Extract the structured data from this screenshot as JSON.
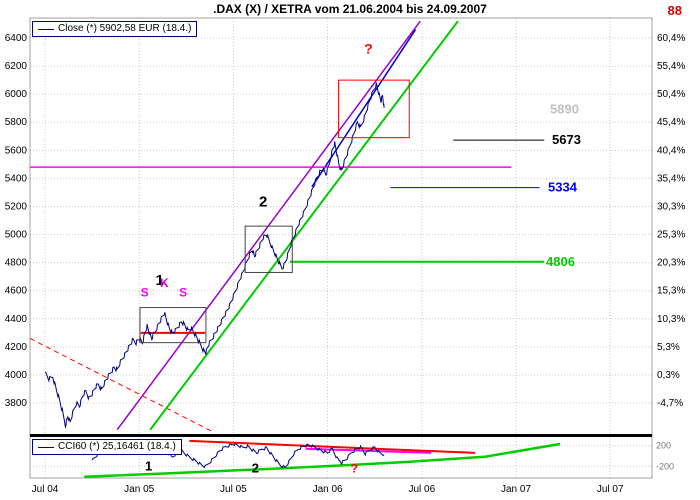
{
  "header": {
    "title": ".DAX (X) / XETRA vom 21.06.2004 bis 24.09.2007",
    "logo": "88"
  },
  "legends": {
    "price": "Close (*) 5902,58 EUR (18.4.)",
    "cci": "CCI60 (*) 25,16461 (18.4.)"
  },
  "chart_data": {
    "type": "line",
    "title": ".DAX (X) / XETRA vom 21.06.2004 bis 24.09.2007",
    "x_axis": {
      "labels": [
        "Jul 04",
        "Jan 05",
        "Jul 05",
        "Jan 06",
        "Jul 06",
        "Jan 07",
        "Jul 07"
      ],
      "t": [
        0,
        6,
        12,
        18,
        24,
        30,
        36
      ]
    },
    "price_axis": {
      "ticks": [
        6400,
        6200,
        6000,
        5800,
        5600,
        5400,
        5200,
        5000,
        4800,
        4600,
        4400,
        4200,
        4000,
        3800
      ],
      "pct_labels": [
        "60,4%",
        "55,4%",
        "50,4%",
        "45,4%",
        "40,4%",
        "35,4%",
        "30,3%",
        "25,3%",
        "20,3%",
        "15,3%",
        "10,3%",
        "5,3%",
        "0,3%",
        "-4,7%"
      ]
    },
    "cci_axis": {
      "ticks": [
        200,
        -200
      ]
    },
    "series": {
      "close": {
        "name": "Close",
        "color": "#00007f",
        "points": [
          [
            0,
            4020
          ],
          [
            0.25,
            3970
          ],
          [
            0.5,
            3985
          ],
          [
            0.7,
            3905
          ],
          [
            0.9,
            3830
          ],
          [
            1.1,
            3745
          ],
          [
            1.3,
            3640
          ],
          [
            1.45,
            3705
          ],
          [
            1.6,
            3665
          ],
          [
            1.8,
            3740
          ],
          [
            2,
            3800
          ],
          [
            2.2,
            3780
          ],
          [
            2.4,
            3850
          ],
          [
            2.6,
            3885
          ],
          [
            2.8,
            3835
          ],
          [
            3,
            3865
          ],
          [
            3.2,
            3910
          ],
          [
            3.4,
            3935
          ],
          [
            3.6,
            3895
          ],
          [
            3.8,
            3945
          ],
          [
            4,
            3985
          ],
          [
            4.2,
            4020
          ],
          [
            4.4,
            4055
          ],
          [
            4.6,
            4035
          ],
          [
            4.8,
            4090
          ],
          [
            5,
            4130
          ],
          [
            5.2,
            4170
          ],
          [
            5.4,
            4210
          ],
          [
            5.6,
            4250
          ],
          [
            5.8,
            4230
          ],
          [
            6,
            4260
          ],
          [
            6.2,
            4225
          ],
          [
            6.35,
            4290
          ],
          [
            6.5,
            4350
          ],
          [
            6.65,
            4300
          ],
          [
            6.8,
            4260
          ],
          [
            7,
            4305
          ],
          [
            7.2,
            4355
          ],
          [
            7.4,
            4400
          ],
          [
            7.6,
            4440
          ],
          [
            7.75,
            4390
          ],
          [
            7.9,
            4340
          ],
          [
            8.1,
            4295
          ],
          [
            8.3,
            4315
          ],
          [
            8.5,
            4350
          ],
          [
            8.7,
            4380
          ],
          [
            8.9,
            4355
          ],
          [
            9.1,
            4315
          ],
          [
            9.3,
            4335
          ],
          [
            9.5,
            4300
          ],
          [
            9.7,
            4260
          ],
          [
            9.9,
            4215
          ],
          [
            10.1,
            4175
          ],
          [
            10.25,
            4160
          ],
          [
            10.4,
            4210
          ],
          [
            10.6,
            4250
          ],
          [
            10.8,
            4290
          ],
          [
            11,
            4330
          ],
          [
            11.2,
            4370
          ],
          [
            11.4,
            4420
          ],
          [
            11.6,
            4460
          ],
          [
            11.8,
            4505
          ],
          [
            12,
            4560
          ],
          [
            12.2,
            4620
          ],
          [
            12.4,
            4680
          ],
          [
            12.6,
            4730
          ],
          [
            12.8,
            4790
          ],
          [
            13,
            4850
          ],
          [
            13.2,
            4890
          ],
          [
            13.35,
            4845
          ],
          [
            13.5,
            4880
          ],
          [
            13.7,
            4930
          ],
          [
            13.9,
            4980
          ],
          [
            14.1,
            5000
          ],
          [
            14.3,
            4950
          ],
          [
            14.5,
            4900
          ],
          [
            14.7,
            4850
          ],
          [
            14.9,
            4800
          ],
          [
            15.1,
            4760
          ],
          [
            15.3,
            4800
          ],
          [
            15.5,
            4870
          ],
          [
            15.7,
            4940
          ],
          [
            15.9,
            5000
          ],
          [
            16.1,
            5060
          ],
          [
            16.3,
            5110
          ],
          [
            16.5,
            5160
          ],
          [
            16.7,
            5220
          ],
          [
            16.9,
            5280
          ],
          [
            17.1,
            5340
          ],
          [
            17.3,
            5400
          ],
          [
            17.5,
            5445
          ],
          [
            17.7,
            5465
          ],
          [
            17.9,
            5430
          ],
          [
            18.1,
            5500
          ],
          [
            18.3,
            5600
          ],
          [
            18.45,
            5650
          ],
          [
            18.6,
            5570
          ],
          [
            18.75,
            5485
          ],
          [
            18.9,
            5460
          ],
          [
            19.1,
            5530
          ],
          [
            19.3,
            5590
          ],
          [
            19.5,
            5660
          ],
          [
            19.7,
            5730
          ],
          [
            19.9,
            5800
          ],
          [
            20.1,
            5760
          ],
          [
            20.3,
            5820
          ],
          [
            20.5,
            5890
          ],
          [
            20.7,
            5960
          ],
          [
            20.9,
            6020
          ],
          [
            21.1,
            6070
          ],
          [
            21.25,
            6010
          ],
          [
            21.4,
            5950
          ],
          [
            21.5,
            5990
          ],
          [
            21.6,
            5902
          ]
        ]
      },
      "cci60": {
        "name": "CCI60",
        "color": "#00007f",
        "points": [
          [
            3,
            -80
          ],
          [
            3.3,
            10
          ],
          [
            3.6,
            70
          ],
          [
            3.9,
            110
          ],
          [
            4.2,
            60
          ],
          [
            4.5,
            100
          ],
          [
            4.8,
            150
          ],
          [
            5.1,
            180
          ],
          [
            5.4,
            120
          ],
          [
            5.7,
            160
          ],
          [
            6,
            90
          ],
          [
            6.3,
            140
          ],
          [
            6.6,
            170
          ],
          [
            6.9,
            80
          ],
          [
            7.2,
            130
          ],
          [
            7.5,
            150
          ],
          [
            7.8,
            60
          ],
          [
            8.1,
            -20
          ],
          [
            8.4,
            60
          ],
          [
            8.7,
            100
          ],
          [
            9,
            20
          ],
          [
            9.3,
            -40
          ],
          [
            9.6,
            -90
          ],
          [
            9.9,
            -160
          ],
          [
            10.2,
            -210
          ],
          [
            10.5,
            -120
          ],
          [
            10.8,
            -20
          ],
          [
            11.1,
            90
          ],
          [
            11.4,
            160
          ],
          [
            11.7,
            200
          ],
          [
            12,
            230
          ],
          [
            12.3,
            200
          ],
          [
            12.6,
            160
          ],
          [
            12.9,
            190
          ],
          [
            13.2,
            120
          ],
          [
            13.5,
            60
          ],
          [
            13.8,
            130
          ],
          [
            14.1,
            160
          ],
          [
            14.4,
            40
          ],
          [
            14.7,
            -80
          ],
          [
            15,
            -180
          ],
          [
            15.3,
            -220
          ],
          [
            15.6,
            -80
          ],
          [
            15.9,
            60
          ],
          [
            16.2,
            150
          ],
          [
            16.5,
            190
          ],
          [
            16.8,
            210
          ],
          [
            17.1,
            180
          ],
          [
            17.4,
            140
          ],
          [
            17.7,
            90
          ],
          [
            18,
            60
          ],
          [
            18.3,
            140
          ],
          [
            18.6,
            -40
          ],
          [
            18.9,
            -130
          ],
          [
            19.2,
            -60
          ],
          [
            19.5,
            60
          ],
          [
            19.8,
            130
          ],
          [
            20.1,
            170
          ],
          [
            20.4,
            40
          ],
          [
            20.7,
            120
          ],
          [
            21,
            170
          ],
          [
            21.3,
            60
          ],
          [
            21.6,
            25
          ]
        ]
      }
    },
    "overlays": {
      "trendlines": [
        {
          "name": "downtrend-red-dashed",
          "color": "#ff0000",
          "width": 1,
          "dash": "5,4",
          "from": [
            -0.95,
            4260
          ],
          "to": [
            10.6,
            3600
          ]
        },
        {
          "name": "uptrend-violet",
          "color": "#9900cc",
          "width": 1.5,
          "from": [
            4.6,
            3610
          ],
          "to": [
            23.9,
            6520
          ]
        },
        {
          "name": "uptrend-green",
          "color": "#00cc00",
          "width": 2,
          "from": [
            6.7,
            3610
          ],
          "to": [
            26.3,
            6520
          ]
        },
        {
          "name": "uptrend-blue",
          "color": "#0000cc",
          "width": 1.5,
          "from": [
            17,
            5340
          ],
          "to": [
            23.6,
            6460
          ]
        }
      ],
      "hlines": [
        {
          "name": "resistance-magenta",
          "value": 5480,
          "color": "#ff00ff",
          "from": -0.95,
          "to": 29.7,
          "width": 1.5
        },
        {
          "name": "neckline-red",
          "value": 4300,
          "color": "#ff0000",
          "from": 6.1,
          "to": 10.2,
          "width": 2
        },
        {
          "name": "support-green-4806",
          "value": 4806,
          "color": "#00cc00",
          "from": 15.6,
          "to": 31.8,
          "width": 2
        },
        {
          "name": "level-black-5673",
          "value": 5673,
          "color": "#000000",
          "from": 26,
          "to": 31.8,
          "width": 1
        },
        {
          "name": "level-blue-5334",
          "value": 5334,
          "color": "#0000ff",
          "from": 22,
          "to": 31.5,
          "width": 1
        }
      ],
      "levels": [
        {
          "text": "5890",
          "value": 5890,
          "color": "#c0c0c0",
          "x": 550
        },
        {
          "text": "5673",
          "value": 5673,
          "color": "#000000",
          "x": 552
        },
        {
          "text": "5334",
          "value": 5334,
          "color": "#0000ff",
          "x": 548
        },
        {
          "text": "4806",
          "value": 4806,
          "color": "#00cc00",
          "x": 546
        }
      ],
      "boxes": [
        {
          "name": "consolidation-box-1",
          "from": [
            6.05,
            4480
          ],
          "to": [
            10.25,
            4230
          ],
          "color": "#444444"
        },
        {
          "name": "consolidation-box-2",
          "from": [
            12.75,
            5060
          ],
          "to": [
            15.75,
            4730
          ],
          "color": "#444444"
        },
        {
          "name": "target-box-red",
          "from": [
            18.7,
            6100
          ],
          "to": [
            23.2,
            5690
          ],
          "color": "#ff0000"
        }
      ],
      "cci_lines": [
        {
          "name": "cci-green-support",
          "color": "#00cc00",
          "width": 2.5,
          "pts": [
            [
              2.5,
              -400
            ],
            [
              8,
              -330
            ],
            [
              13,
              -265
            ],
            [
              18,
              -195
            ],
            [
              23,
              -115
            ],
            [
              28,
              -15
            ],
            [
              32.8,
              230
            ]
          ]
        },
        {
          "name": "cci-red-trend",
          "color": "#ff0000",
          "width": 2,
          "pts": [
            [
              9.2,
              290
            ],
            [
              27.4,
              60
            ]
          ]
        },
        {
          "name": "cci-magenta-trend",
          "color": "#ff00ff",
          "width": 2,
          "pts": [
            [
              16.6,
              140
            ],
            [
              24.6,
              60
            ]
          ]
        }
      ]
    },
    "annotations": {
      "main": [
        {
          "text": "1",
          "t": 7.3,
          "p": 4640,
          "color": "#000000",
          "size": 15,
          "bold": true
        },
        {
          "text": "2",
          "t": 13.9,
          "p": 5200,
          "color": "#000000",
          "size": 15,
          "bold": true
        },
        {
          "text": "S",
          "t": 6.35,
          "p": 4560,
          "color": "#ff00ff",
          "size": 12,
          "bold": true
        },
        {
          "text": "K",
          "t": 7.6,
          "p": 4625,
          "color": "#cc00cc",
          "size": 12,
          "bold": true
        },
        {
          "text": "S",
          "t": 8.8,
          "p": 4560,
          "color": "#ff00ff",
          "size": 12,
          "bold": true
        },
        {
          "text": "?",
          "t": 20.6,
          "p": 6290,
          "color": "#ff0000",
          "size": 14,
          "bold": true
        }
      ],
      "cci": [
        {
          "text": "1",
          "t": 6.6,
          "v": -280,
          "color": "#000000",
          "size": 13,
          "bold": true
        },
        {
          "text": "2",
          "t": 13.4,
          "v": -320,
          "color": "#000000",
          "size": 13,
          "bold": true
        },
        {
          "text": "?",
          "t": 19.7,
          "v": -320,
          "color": "#ff0000",
          "size": 12,
          "bold": true
        }
      ]
    }
  }
}
